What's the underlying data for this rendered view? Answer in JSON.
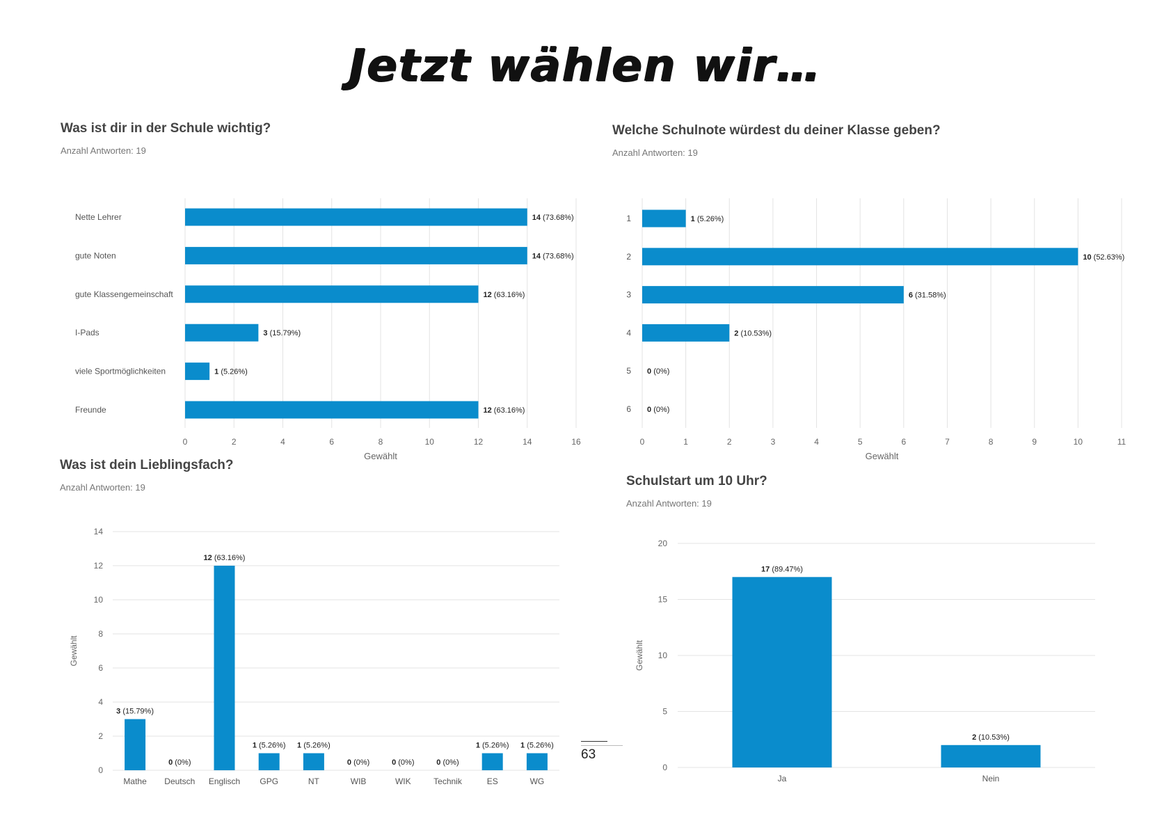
{
  "page": {
    "title": "Jetzt wählen wir…",
    "page_number": "63"
  },
  "chart_data": [
    {
      "id": "c1",
      "type": "bar",
      "orientation": "horizontal",
      "title": "Was ist dir in der Schule wichtig?",
      "subtitle": "Anzahl Antworten: 19",
      "categories": [
        "Nette Lehrer",
        "gute Noten",
        "gute Klassengemeinschaft",
        "I-Pads",
        "viele Sportmöglichkeiten",
        "Freunde"
      ],
      "values": [
        14,
        14,
        12,
        3,
        1,
        12
      ],
      "labels": [
        "(73.68%)",
        "(73.68%)",
        "(63.16%)",
        "(15.79%)",
        "(5.26%)",
        "(63.16%)"
      ],
      "ticks": [
        0,
        2,
        4,
        6,
        8,
        10,
        12,
        14,
        16
      ],
      "xlim": [
        0,
        16
      ],
      "xlabel": "Gewählt",
      "color": "#0a8ccc"
    },
    {
      "id": "c2",
      "type": "bar",
      "orientation": "horizontal",
      "title": "Welche Schulnote würdest du deiner Klasse geben?",
      "subtitle": "Anzahl Antworten: 19",
      "categories": [
        "1",
        "2",
        "3",
        "4",
        "5",
        "6"
      ],
      "values": [
        1,
        10,
        6,
        2,
        0,
        0
      ],
      "labels": [
        "(5.26%)",
        "(52.63%)",
        "(31.58%)",
        "(10.53%)",
        "(0%)",
        "(0%)"
      ],
      "ticks": [
        0,
        1,
        2,
        3,
        4,
        5,
        6,
        7,
        8,
        9,
        10,
        11
      ],
      "xlim": [
        0,
        11
      ],
      "xlabel": "Gewählt",
      "color": "#0a8ccc"
    },
    {
      "id": "c3",
      "type": "bar",
      "orientation": "vertical",
      "title": "Was ist dein Lieblingsfach?",
      "subtitle": "Anzahl Antworten: 19",
      "categories": [
        "Mathe",
        "Deutsch",
        "Englisch",
        "GPG",
        "NT",
        "WIB",
        "WIK",
        "Technik",
        "ES",
        "WG"
      ],
      "values": [
        3,
        0,
        12,
        1,
        1,
        0,
        0,
        0,
        1,
        1
      ],
      "labels": [
        "(15.79%)",
        "(0%)",
        "(63.16%)",
        "(5.26%)",
        "(5.26%)",
        "(0%)",
        "(0%)",
        "(0%)",
        "(5.26%)",
        "(5.26%)"
      ],
      "ticks": [
        0,
        2,
        4,
        6,
        8,
        10,
        12,
        14
      ],
      "ylim": [
        0,
        14
      ],
      "ylabel": "Gewählt",
      "color": "#0a8ccc"
    },
    {
      "id": "c4",
      "type": "bar",
      "orientation": "vertical",
      "title": "Schulstart um 10 Uhr?",
      "subtitle": "Anzahl Antworten: 19",
      "categories": [
        "Ja",
        "Nein"
      ],
      "values": [
        17,
        2
      ],
      "labels": [
        "(89.47%)",
        "(10.53%)"
      ],
      "ticks": [
        0,
        5,
        10,
        15,
        20
      ],
      "ylim": [
        0,
        20
      ],
      "ylabel": "Gewählt",
      "color": "#0a8ccc"
    }
  ]
}
